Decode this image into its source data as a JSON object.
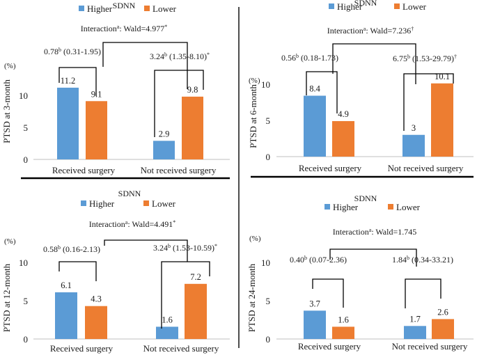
{
  "colors": {
    "higher": "#5b9bd5",
    "lower": "#ed7d31",
    "axis": "#bfbfbf",
    "bracket": "#000000",
    "text": "#1a1a1a"
  },
  "chart_data": [
    {
      "type": "bar",
      "title": "PTSD at 3-month",
      "legend_title": "SDNN",
      "unit": "(%)",
      "ylabel": "PTSD at 3-month",
      "categories": [
        "Received surgery",
        "Not received surgery"
      ],
      "series": [
        {
          "name": "Higher",
          "values": [
            11.2,
            2.9
          ]
        },
        {
          "name": "Lower",
          "values": [
            9.1,
            9.8
          ]
        }
      ],
      "value_labels": [
        [
          "11.2",
          "2.9"
        ],
        [
          "9.1",
          "9.8"
        ]
      ],
      "yticks": [
        "0",
        "5",
        "10"
      ],
      "ylim": [
        0,
        12.5
      ],
      "annotations": {
        "interaction": {
          "text": "Interaction",
          "sup": "a",
          "wald": ": Wald=4.977",
          "mark": "*"
        },
        "left": {
          "pre": "0.78",
          "sup": "b",
          "post": " (0.31-1.95)",
          "mark": ""
        },
        "right": {
          "pre": "3.24",
          "sup": "b",
          "post": " (1.35-8.10)",
          "mark": "*"
        }
      }
    },
    {
      "type": "bar",
      "title": "PTSD at 6-month",
      "legend_title": "SDNN",
      "unit": "(%)",
      "ylabel": "PTSD at 6-month",
      "categories": [
        "Received surgery",
        "Not received surgery"
      ],
      "series": [
        {
          "name": "Higher",
          "values": [
            8.4,
            3
          ]
        },
        {
          "name": "Lower",
          "values": [
            4.9,
            10.1
          ]
        }
      ],
      "value_labels": [
        [
          "8.4",
          "3"
        ],
        [
          "4.9",
          "10.1"
        ]
      ],
      "yticks": [
        "0",
        "5",
        "10"
      ],
      "ylim": [
        0,
        12
      ],
      "annotations": {
        "interaction": {
          "text": "Interaction",
          "sup": "a",
          "wald": ":  Wald=7.236",
          "mark": "†"
        },
        "left": {
          "pre": "0.56",
          "sup": "b",
          "post": " (0.18-1.73)",
          "mark": ""
        },
        "right": {
          "pre": "6.75",
          "sup": "b",
          "post": " (1.53-29.79)",
          "mark": "†"
        }
      }
    },
    {
      "type": "bar",
      "title": "PTSD at 12-month",
      "legend_title": "SDNN",
      "unit": "(%)",
      "ylabel": "PTSD at 12-month",
      "categories": [
        "Received surgery",
        "Not received surgery"
      ],
      "series": [
        {
          "name": "Higher",
          "values": [
            6.1,
            1.6
          ]
        },
        {
          "name": "Lower",
          "values": [
            4.3,
            7.2
          ]
        }
      ],
      "value_labels": [
        [
          "6.1",
          "1.6"
        ],
        [
          "4.3",
          "7.2"
        ]
      ],
      "yticks": [
        "0",
        "5",
        "10"
      ],
      "ylim": [
        0,
        10
      ],
      "annotations": {
        "interaction": {
          "text": "Interaction",
          "sup": "a",
          "wald": ":  Wald=4.491",
          "mark": "*"
        },
        "left": {
          "pre": "0.58",
          "sup": "b",
          "post": " (0.16-2.13)",
          "mark": ""
        },
        "right": {
          "pre": "3.24",
          "sup": "b",
          "post": " (1.53-10.59)",
          "mark": "*"
        }
      }
    },
    {
      "type": "bar",
      "title": "PTSD at 24-month",
      "legend_title": "SDNN",
      "unit": "(%)",
      "ylabel": "PTSD at 24-month",
      "categories": [
        "Received surgery",
        "Not received surgery"
      ],
      "series": [
        {
          "name": "Higher",
          "values": [
            3.7,
            1.7
          ]
        },
        {
          "name": "Lower",
          "values": [
            1.6,
            2.6
          ]
        }
      ],
      "value_labels": [
        [
          "3.7",
          "1.7"
        ],
        [
          "1.6",
          "2.6"
        ]
      ],
      "yticks": [
        "0",
        "5",
        "10"
      ],
      "ylim": [
        0,
        10
      ],
      "annotations": {
        "interaction": {
          "text": "Interaction",
          "sup": "a",
          "wald": ":  Wald=1.745",
          "mark": ""
        },
        "left": {
          "pre": "0.40",
          "sup": "b",
          "post": " (0.07-2.36)",
          "mark": ""
        },
        "right": {
          "pre": "1.84",
          "sup": "b",
          "post": " (0.34-33.21)",
          "mark": ""
        }
      }
    }
  ]
}
